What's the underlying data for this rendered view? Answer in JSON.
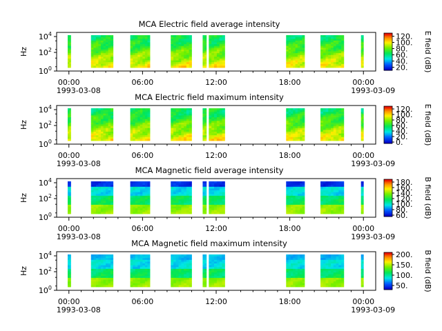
{
  "chart_data": [
    {
      "type": "heatmap",
      "title": "MCA  Electric field average intensity",
      "ylabel": "Hz",
      "y_scale": "log",
      "y_ticks": [
        "10^4",
        "10^2",
        "10^0"
      ],
      "x_ticks": [
        "00:00",
        "06:00",
        "12:00",
        "18:00",
        "00:00"
      ],
      "x_start_date": "1993-03-08",
      "x_end_date": "1993-03-09",
      "colorbar_label": "E field (dB)",
      "colorbar_ticks": [
        "120.",
        "100.",
        "80.",
        "60.",
        "40.",
        "20."
      ],
      "colorbar_range": [
        10,
        130
      ]
    },
    {
      "type": "heatmap",
      "title": "MCA  Electric field maximum intensity",
      "ylabel": "Hz",
      "y_scale": "log",
      "y_ticks": [
        "10^4",
        "10^2",
        "10^0"
      ],
      "x_ticks": [
        "00:00",
        "06:00",
        "12:00",
        "18:00",
        "00:00"
      ],
      "x_start_date": "1993-03-08",
      "x_end_date": "1993-03-09",
      "colorbar_label": "E field (dB)",
      "colorbar_ticks": [
        "120.",
        "100.",
        "80.",
        "60.",
        "40.",
        "20.",
        "0."
      ],
      "colorbar_range": [
        -5,
        130
      ]
    },
    {
      "type": "heatmap",
      "title": "MCA  Magnetic field average intensity",
      "ylabel": "Hz",
      "y_scale": "log",
      "y_ticks": [
        "10^4",
        "10^2",
        "10^0"
      ],
      "x_ticks": [
        "00:00",
        "06:00",
        "12:00",
        "18:00",
        "00:00"
      ],
      "x_start_date": "1993-03-08",
      "x_end_date": "1993-03-09",
      "colorbar_label": "B field (dB)",
      "colorbar_ticks": [
        "180.",
        "160.",
        "140.",
        "120.",
        "100.",
        "80.",
        "60."
      ],
      "colorbar_range": [
        55,
        190
      ]
    },
    {
      "type": "heatmap",
      "title": "MCA  Magnetic field maximum intensity",
      "ylabel": "Hz",
      "y_scale": "log",
      "y_ticks": [
        "10^4",
        "10^2",
        "10^0"
      ],
      "x_ticks": [
        "00:00",
        "06:00",
        "12:00",
        "18:00",
        "00:00"
      ],
      "x_start_date": "1993-03-08",
      "x_end_date": "1993-03-09",
      "colorbar_label": "B field (dB)",
      "colorbar_ticks": [
        "200.",
        "150.",
        "100.",
        "50."
      ],
      "colorbar_range": [
        30,
        210
      ]
    }
  ]
}
